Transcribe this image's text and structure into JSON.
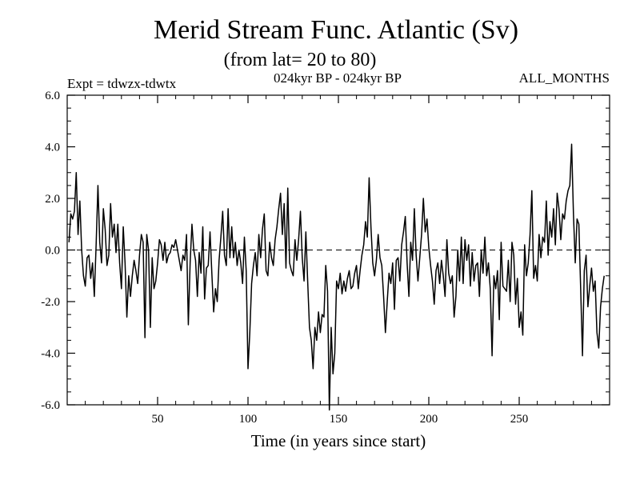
{
  "chart_data": {
    "type": "line",
    "title": "Merid Stream Func. Atlantic (Sv)",
    "subtitle": "(from lat= 20 to 80)",
    "left_note": "Expt = tdwzx-tdwtx",
    "center_note": "024kyr BP - 024kyr BP",
    "right_note": "ALL_MONTHS",
    "xlabel": "Time (in years since start)",
    "xlim": [
      0,
      300
    ],
    "ylim": [
      -6.0,
      6.0
    ],
    "x_ticks": [
      50,
      100,
      150,
      200,
      250
    ],
    "y_ticks": [
      -6.0,
      -4.0,
      -2.0,
      0.0,
      2.0,
      4.0,
      6.0
    ],
    "y_tick_labels": [
      "-6.0",
      "-4.0",
      "-2.0",
      "0.0",
      "2.0",
      "4.0",
      "6.0"
    ],
    "zero_line": "dashed",
    "line_color": "#000000",
    "series": [
      {
        "x_start": 1,
        "x_step": 1,
        "values": [
          0.3,
          1.4,
          1.2,
          1.5,
          3.0,
          0.6,
          1.9,
          0.0,
          -1.0,
          -1.4,
          -0.3,
          -0.2,
          -1.1,
          -0.5,
          -1.8,
          0.2,
          2.5,
          0.3,
          -0.5,
          1.6,
          0.8,
          -0.6,
          -0.2,
          1.8,
          0.5,
          1.0,
          -0.1,
          1.0,
          -0.5,
          -1.5,
          0.9,
          -0.5,
          -2.6,
          -1.0,
          -1.8,
          -1.0,
          -0.4,
          -0.8,
          -1.3,
          -0.2,
          0.6,
          0.3,
          -3.4,
          0.6,
          0.0,
          -3.0,
          -0.3,
          -1.5,
          -1.2,
          -0.5,
          0.4,
          0.2,
          -0.4,
          0.3,
          -0.5,
          -0.2,
          -0.1,
          0.2,
          0.1,
          0.4,
          0.0,
          -0.4,
          -0.8,
          -0.2,
          -0.4,
          0.6,
          -2.9,
          -0.5,
          1.0,
          0.0,
          -0.4,
          -1.8,
          -0.1,
          -0.9,
          0.9,
          -1.9,
          -0.7,
          -0.6,
          0.7,
          -0.9,
          -2.4,
          -1.5,
          -2.0,
          -0.4,
          0.5,
          1.5,
          -0.2,
          -0.6,
          1.6,
          -0.3,
          0.9,
          -0.3,
          0.3,
          -0.6,
          0.0,
          -0.5,
          -1.3,
          0.5,
          -0.8,
          -4.6,
          -3.2,
          -1.3,
          -0.6,
          -0.1,
          -1.0,
          0.6,
          -0.3,
          0.8,
          1.4,
          -0.8,
          -1.0,
          0.3,
          -0.3,
          -0.6,
          0.4,
          0.9,
          1.6,
          2.2,
          0.6,
          1.8,
          -0.7,
          2.4,
          -0.5,
          -0.8,
          -1.0,
          0.4,
          -0.4,
          0.4,
          1.5,
          -0.3,
          -1.2,
          0.7,
          -1.2,
          -3.0,
          -3.5,
          -4.6,
          -3.0,
          -3.5,
          -2.4,
          -3.2,
          -2.5,
          -2.6,
          -0.6,
          -1.6,
          -6.2,
          -3.0,
          -4.8,
          -4.0,
          -1.2,
          -1.5,
          -0.9,
          -1.7,
          -1.2,
          -1.6,
          -1.1,
          -0.8,
          -1.5,
          -1.4,
          -0.9,
          -0.6,
          -1.5,
          -0.8,
          -0.2,
          0.2,
          1.1,
          0.5,
          2.8,
          0.9,
          -0.5,
          -1.0,
          -0.4,
          0.6,
          -0.3,
          -0.6,
          -1.8,
          -3.2,
          -2.0,
          -0.9,
          -1.3,
          -0.5,
          -2.3,
          -0.4,
          -0.3,
          -1.2,
          0.2,
          0.7,
          1.3,
          -0.5,
          -1.8,
          0.3,
          -0.4,
          1.6,
          -0.2,
          -1.2,
          -0.3,
          0.6,
          2.0,
          0.7,
          1.2,
          0.1,
          -0.6,
          -1.2,
          -2.1,
          -0.8,
          -0.5,
          -1.3,
          -0.4,
          -1.0,
          -1.8,
          0.4,
          -0.9,
          -1.3,
          -1.0,
          -2.6,
          -1.8,
          0.0,
          -1.2,
          0.5,
          -1.3,
          0.4,
          -0.4,
          0.2,
          -1.4,
          -0.1,
          -1.2,
          -0.6,
          -0.5,
          -1.8,
          0.0,
          -0.9,
          0.5,
          -1.0,
          -0.5,
          -1.5,
          -4.1,
          -1.0,
          -1.5,
          -0.8,
          -2.7,
          0.3,
          -1.4,
          -1.5,
          -1.6,
          -0.4,
          -2.0,
          0.3,
          -0.2,
          -2.1,
          -1.1,
          -3.0,
          -2.4,
          -3.3,
          0.2,
          -1.0,
          -0.5,
          0.6,
          2.3,
          -1.1,
          -0.6,
          -1.2,
          0.6,
          -0.3,
          0.5,
          0.3,
          1.9,
          -0.2,
          1.1,
          0.5,
          1.6,
          0.2,
          2.2,
          1.6,
          0.4,
          1.4,
          1.2,
          1.9,
          2.3,
          2.5,
          4.1,
          1.4,
          -0.5,
          1.2,
          1.0,
          -1.5,
          -4.1,
          -0.8,
          -0.2,
          -2.2,
          -1.4,
          -0.7,
          -1.6,
          -1.2,
          -3.2,
          -3.8,
          -2.2,
          -1.5,
          -1.0
        ]
      }
    ]
  }
}
